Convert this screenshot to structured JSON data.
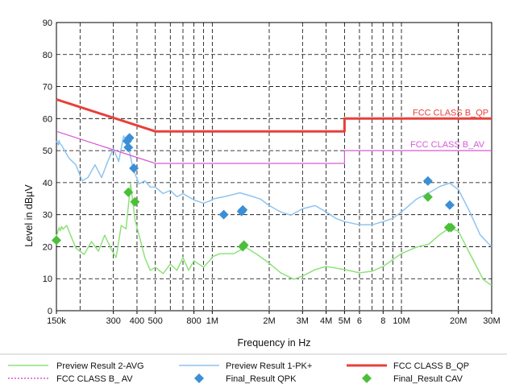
{
  "chart_data": {
    "type": "line",
    "xlabel": "Frequency in Hz",
    "ylabel": "Level in dBµV",
    "x_scale": "log",
    "xlim_hz": [
      150000,
      30000000
    ],
    "ylim": [
      0,
      90
    ],
    "grid": true,
    "y_ticks": [
      0,
      10,
      20,
      30,
      40,
      50,
      60,
      70,
      80,
      90
    ],
    "x_ticks": [
      {
        "hz": 150000,
        "label": "150k"
      },
      {
        "hz": 300000,
        "label": "300"
      },
      {
        "hz": 400000,
        "label": "400"
      },
      {
        "hz": 500000,
        "label": "500"
      },
      {
        "hz": 800000,
        "label": "800"
      },
      {
        "hz": 1000000,
        "label": "1M"
      },
      {
        "hz": 2000000,
        "label": "2M"
      },
      {
        "hz": 3000000,
        "label": "3M"
      },
      {
        "hz": 4000000,
        "label": "4M"
      },
      {
        "hz": 5000000,
        "label": "5M"
      },
      {
        "hz": 6000000,
        "label": "6"
      },
      {
        "hz": 8000000,
        "label": "8"
      },
      {
        "hz": 10000000,
        "label": "10M"
      },
      {
        "hz": 20000000,
        "label": "20M"
      },
      {
        "hz": 30000000,
        "label": "30M"
      }
    ],
    "limit_labels": {
      "qp": "FCC CLASS B_QP",
      "av": "FCC CLASS B_AV"
    },
    "series": [
      {
        "name": "Preview Result 2-AVG",
        "color": "#8ee27a",
        "points": [
          [
            150000,
            24
          ],
          [
            170000,
            27
          ],
          [
            190000,
            20
          ],
          [
            210000,
            18
          ],
          [
            230000,
            22
          ],
          [
            250000,
            19
          ],
          [
            270000,
            24
          ],
          [
            290000,
            20
          ],
          [
            310000,
            17
          ],
          [
            330000,
            27
          ],
          [
            350000,
            26
          ],
          [
            370000,
            40
          ],
          [
            390000,
            29
          ],
          [
            410000,
            24
          ],
          [
            440000,
            17
          ],
          [
            470000,
            13
          ],
          [
            500000,
            14
          ],
          [
            550000,
            12
          ],
          [
            600000,
            15
          ],
          [
            650000,
            13
          ],
          [
            700000,
            17
          ],
          [
            750000,
            13
          ],
          [
            800000,
            16
          ],
          [
            900000,
            14
          ],
          [
            1000000,
            17
          ],
          [
            1100000,
            18
          ],
          [
            1300000,
            18
          ],
          [
            1500000,
            20
          ],
          [
            1700000,
            18
          ],
          [
            2000000,
            15
          ],
          [
            2300000,
            12
          ],
          [
            2700000,
            10
          ],
          [
            3000000,
            11
          ],
          [
            3500000,
            13
          ],
          [
            4000000,
            14
          ],
          [
            4500000,
            13.5
          ],
          [
            5000000,
            13
          ],
          [
            6000000,
            12
          ],
          [
            7000000,
            12.5
          ],
          [
            8000000,
            14
          ],
          [
            10000000,
            18
          ],
          [
            12000000,
            20
          ],
          [
            14000000,
            21
          ],
          [
            16000000,
            24
          ],
          [
            18000000,
            26
          ],
          [
            20000000,
            25
          ],
          [
            23000000,
            18
          ],
          [
            27000000,
            10
          ],
          [
            30000000,
            8
          ]
        ]
      },
      {
        "name": "Preview Result 1-PK+",
        "color": "#8fc4ef",
        "points": [
          [
            150000,
            54
          ],
          [
            160000,
            52
          ],
          [
            175000,
            48
          ],
          [
            190000,
            46
          ],
          [
            205000,
            41
          ],
          [
            220000,
            42
          ],
          [
            240000,
            46
          ],
          [
            260000,
            42
          ],
          [
            280000,
            47
          ],
          [
            300000,
            51
          ],
          [
            320000,
            47
          ],
          [
            340000,
            55
          ],
          [
            360000,
            52
          ],
          [
            380000,
            45
          ],
          [
            410000,
            40
          ],
          [
            440000,
            41
          ],
          [
            470000,
            39
          ],
          [
            500000,
            39
          ],
          [
            550000,
            37
          ],
          [
            600000,
            38
          ],
          [
            650000,
            36
          ],
          [
            700000,
            37
          ],
          [
            800000,
            35
          ],
          [
            900000,
            34
          ],
          [
            1000000,
            35
          ],
          [
            1200000,
            36
          ],
          [
            1400000,
            37
          ],
          [
            1600000,
            36
          ],
          [
            1800000,
            35
          ],
          [
            2000000,
            33
          ],
          [
            2300000,
            31
          ],
          [
            2600000,
            30
          ],
          [
            3000000,
            32
          ],
          [
            3500000,
            33
          ],
          [
            4000000,
            31
          ],
          [
            4500000,
            29
          ],
          [
            5000000,
            28
          ],
          [
            6000000,
            27
          ],
          [
            7000000,
            27
          ],
          [
            8000000,
            28
          ],
          [
            9000000,
            29
          ],
          [
            10000000,
            31
          ],
          [
            12000000,
            35
          ],
          [
            14000000,
            37
          ],
          [
            16000000,
            39
          ],
          [
            18000000,
            40
          ],
          [
            20000000,
            38
          ],
          [
            23000000,
            31
          ],
          [
            26000000,
            24
          ],
          [
            30000000,
            20
          ]
        ]
      },
      {
        "name": "FCC CLASS B_QP",
        "color": "#e8403a",
        "points": [
          [
            150000,
            66
          ],
          [
            500000,
            56
          ],
          [
            5000000,
            56
          ],
          [
            5000000,
            60
          ],
          [
            30000000,
            60
          ]
        ]
      },
      {
        "name": "FCC CLASS B_ AV",
        "color": "#d659d6",
        "points": [
          [
            150000,
            56
          ],
          [
            500000,
            46
          ],
          [
            5000000,
            46
          ],
          [
            5000000,
            50
          ],
          [
            30000000,
            50
          ]
        ]
      },
      {
        "name": "Final_Result QPK",
        "color": "#3b8fd6",
        "marker": "diamond",
        "points": [
          [
            355000,
            53
          ],
          [
            360000,
            51
          ],
          [
            365000,
            54
          ],
          [
            385000,
            44.5
          ],
          [
            1150000,
            30
          ],
          [
            1430000,
            31
          ],
          [
            1450000,
            31.5
          ],
          [
            13800000,
            40.5
          ],
          [
            18000000,
            33
          ]
        ]
      },
      {
        "name": "Final_Result CAV",
        "color": "#4cbf3a",
        "marker": "diamond",
        "points": [
          [
            150000,
            22
          ],
          [
            360000,
            37
          ],
          [
            390000,
            34
          ],
          [
            1450000,
            20
          ],
          [
            1470000,
            20.5
          ],
          [
            13800000,
            35.5
          ],
          [
            17800000,
            26
          ],
          [
            18300000,
            26
          ]
        ]
      }
    ],
    "legend": {
      "placement": "bottom",
      "entries": [
        {
          "label": "Preview Result 2-AVG",
          "style": "line",
          "color": "#8ee27a"
        },
        {
          "label": "Preview Result 1-PK+",
          "style": "line",
          "color": "#8fc4ef"
        },
        {
          "label": "FCC CLASS B_QP",
          "style": "thickline",
          "color": "#e8403a"
        },
        {
          "label": "FCC CLASS B_ AV",
          "style": "line",
          "color": "#d659d6"
        },
        {
          "label": "Final_Result QPK",
          "style": "diamond",
          "color": "#3b8fd6"
        },
        {
          "label": "Final_Result CAV",
          "style": "diamond",
          "color": "#4cbf3a"
        }
      ]
    }
  }
}
